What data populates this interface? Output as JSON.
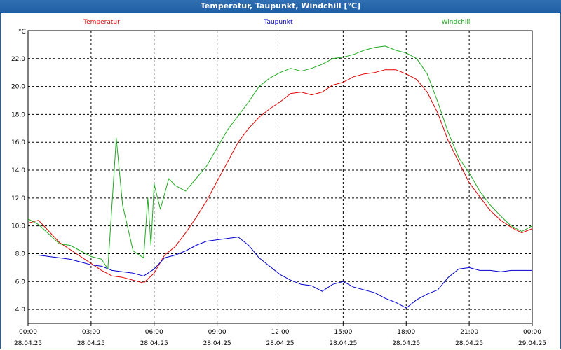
{
  "window": {
    "title": "Temperatur, Taupunkt, Windchill [°C]"
  },
  "chart_data": {
    "type": "line",
    "title": "Temperatur, Taupunkt, Windchill [°C]",
    "ylabel": "°C",
    "xlabel": "",
    "ylim": [
      3.0,
      24.0
    ],
    "xlim_hours": [
      0,
      24
    ],
    "y_ticks": [
      "4,0",
      "6,0",
      "8,0",
      "10,0",
      "12,0",
      "14,0",
      "16,0",
      "18,0",
      "20,0",
      "22,0"
    ],
    "y_tick_values": [
      4,
      6,
      8,
      10,
      12,
      14,
      16,
      18,
      20,
      22
    ],
    "x_ticks": [
      {
        "time": "00:00",
        "date": "28.04.25"
      },
      {
        "time": "03:00",
        "date": "28.04.25"
      },
      {
        "time": "06:00",
        "date": "28.04.25"
      },
      {
        "time": "09:00",
        "date": "28.04.25"
      },
      {
        "time": "12:00",
        "date": "28.04.25"
      },
      {
        "time": "15:00",
        "date": "28.04.25"
      },
      {
        "time": "18:00",
        "date": "28.04.25"
      },
      {
        "time": "21:00",
        "date": "28.04.25"
      },
      {
        "time": "00:00",
        "date": "29.04.25"
      }
    ],
    "grid": true,
    "legend_position": "top",
    "series": [
      {
        "name": "Temperatur",
        "color": "#e00000",
        "points": [
          [
            0.0,
            10.2
          ],
          [
            0.5,
            10.4
          ],
          [
            1.0,
            9.6
          ],
          [
            1.5,
            8.8
          ],
          [
            2.0,
            8.3
          ],
          [
            2.5,
            7.8
          ],
          [
            3.0,
            7.3
          ],
          [
            3.5,
            6.8
          ],
          [
            4.0,
            6.4
          ],
          [
            4.5,
            6.3
          ],
          [
            5.0,
            6.1
          ],
          [
            5.5,
            5.9
          ],
          [
            6.0,
            6.6
          ],
          [
            6.5,
            7.9
          ],
          [
            7.0,
            8.5
          ],
          [
            7.5,
            9.5
          ],
          [
            8.0,
            10.6
          ],
          [
            8.5,
            11.8
          ],
          [
            9.0,
            13.2
          ],
          [
            9.5,
            14.6
          ],
          [
            10.0,
            16.0
          ],
          [
            10.5,
            17.0
          ],
          [
            11.0,
            17.8
          ],
          [
            11.5,
            18.4
          ],
          [
            12.0,
            18.9
          ],
          [
            12.5,
            19.5
          ],
          [
            13.0,
            19.6
          ],
          [
            13.5,
            19.4
          ],
          [
            14.0,
            19.6
          ],
          [
            14.5,
            20.1
          ],
          [
            15.0,
            20.3
          ],
          [
            15.5,
            20.7
          ],
          [
            16.0,
            20.9
          ],
          [
            16.5,
            21.0
          ],
          [
            17.0,
            21.2
          ],
          [
            17.5,
            21.2
          ],
          [
            18.0,
            20.9
          ],
          [
            18.5,
            20.5
          ],
          [
            19.0,
            19.6
          ],
          [
            19.5,
            18.1
          ],
          [
            20.0,
            16.1
          ],
          [
            20.5,
            14.6
          ],
          [
            21.0,
            13.1
          ],
          [
            21.5,
            12.1
          ],
          [
            22.0,
            11.1
          ],
          [
            22.5,
            10.4
          ],
          [
            23.0,
            9.9
          ],
          [
            23.5,
            9.5
          ],
          [
            24.0,
            9.8
          ]
        ]
      },
      {
        "name": "Taupunkt",
        "color": "#0000cc",
        "points": [
          [
            0.0,
            7.9
          ],
          [
            0.5,
            7.9
          ],
          [
            1.0,
            7.8
          ],
          [
            1.5,
            7.7
          ],
          [
            2.0,
            7.6
          ],
          [
            2.5,
            7.4
          ],
          [
            3.0,
            7.2
          ],
          [
            3.5,
            7.1
          ],
          [
            4.0,
            6.8
          ],
          [
            4.5,
            6.7
          ],
          [
            5.0,
            6.6
          ],
          [
            5.5,
            6.4
          ],
          [
            6.0,
            6.9
          ],
          [
            6.5,
            7.7
          ],
          [
            7.0,
            7.9
          ],
          [
            7.5,
            8.2
          ],
          [
            8.0,
            8.6
          ],
          [
            8.5,
            8.9
          ],
          [
            9.0,
            9.0
          ],
          [
            9.5,
            9.1
          ],
          [
            10.0,
            9.2
          ],
          [
            10.5,
            8.6
          ],
          [
            11.0,
            7.7
          ],
          [
            11.5,
            7.1
          ],
          [
            12.0,
            6.5
          ],
          [
            12.5,
            6.1
          ],
          [
            13.0,
            5.8
          ],
          [
            13.5,
            5.7
          ],
          [
            14.0,
            5.3
          ],
          [
            14.5,
            5.8
          ],
          [
            15.0,
            6.0
          ],
          [
            15.5,
            5.6
          ],
          [
            16.0,
            5.4
          ],
          [
            16.5,
            5.2
          ],
          [
            17.0,
            4.8
          ],
          [
            17.5,
            4.5
          ],
          [
            18.0,
            4.1
          ],
          [
            18.5,
            4.7
          ],
          [
            19.0,
            5.1
          ],
          [
            19.5,
            5.4
          ],
          [
            20.0,
            6.3
          ],
          [
            20.5,
            6.9
          ],
          [
            21.0,
            7.0
          ],
          [
            21.5,
            6.8
          ],
          [
            22.0,
            6.8
          ],
          [
            22.5,
            6.7
          ],
          [
            23.0,
            6.8
          ],
          [
            23.5,
            6.8
          ],
          [
            24.0,
            6.8
          ]
        ]
      },
      {
        "name": "Windchill",
        "color": "#1faa1f",
        "points": [
          [
            0.0,
            10.5
          ],
          [
            0.5,
            10.1
          ],
          [
            1.0,
            9.4
          ],
          [
            1.5,
            8.7
          ],
          [
            2.0,
            8.6
          ],
          [
            2.5,
            8.2
          ],
          [
            3.0,
            7.8
          ],
          [
            3.5,
            7.6
          ],
          [
            3.8,
            6.9
          ],
          [
            4.2,
            16.3
          ],
          [
            4.5,
            11.5
          ],
          [
            5.0,
            8.2
          ],
          [
            5.5,
            7.7
          ],
          [
            5.7,
            12.0
          ],
          [
            5.85,
            8.6
          ],
          [
            6.0,
            13.0
          ],
          [
            6.3,
            11.2
          ],
          [
            6.7,
            13.4
          ],
          [
            7.0,
            12.9
          ],
          [
            7.5,
            12.5
          ],
          [
            8.0,
            13.4
          ],
          [
            8.5,
            14.3
          ],
          [
            9.0,
            15.6
          ],
          [
            9.5,
            16.9
          ],
          [
            10.0,
            17.9
          ],
          [
            10.5,
            18.9
          ],
          [
            11.0,
            20.0
          ],
          [
            11.5,
            20.6
          ],
          [
            12.0,
            21.0
          ],
          [
            12.5,
            21.3
          ],
          [
            13.0,
            21.1
          ],
          [
            13.5,
            21.3
          ],
          [
            14.0,
            21.6
          ],
          [
            14.5,
            22.0
          ],
          [
            15.0,
            22.1
          ],
          [
            15.5,
            22.3
          ],
          [
            16.0,
            22.6
          ],
          [
            16.5,
            22.8
          ],
          [
            17.0,
            22.9
          ],
          [
            17.5,
            22.6
          ],
          [
            18.0,
            22.4
          ],
          [
            18.5,
            22.0
          ],
          [
            19.0,
            20.9
          ],
          [
            19.5,
            18.9
          ],
          [
            20.0,
            16.7
          ],
          [
            20.5,
            14.9
          ],
          [
            21.0,
            13.8
          ],
          [
            21.5,
            12.5
          ],
          [
            22.0,
            11.5
          ],
          [
            22.5,
            10.7
          ],
          [
            23.0,
            10.0
          ],
          [
            23.5,
            9.6
          ],
          [
            24.0,
            10.0
          ]
        ]
      }
    ]
  }
}
